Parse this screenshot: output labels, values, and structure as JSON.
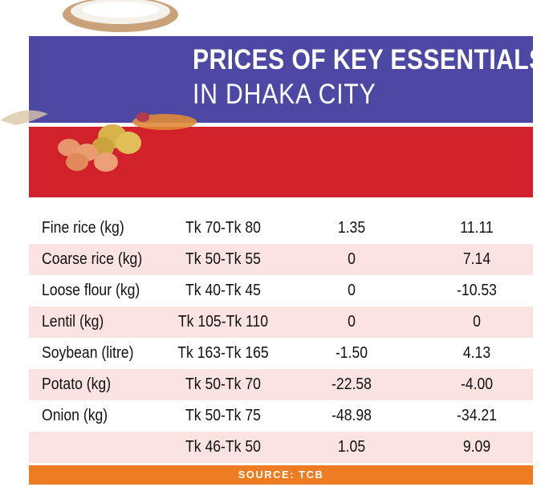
{
  "header": {
    "title_line1": "PRICES OF KEY ESSENTIALS",
    "title_line2": "IN DHAKA CITY"
  },
  "chart_data": {
    "type": "table",
    "title": "PRICES OF KEY ESSENTIALS IN DHAKA CITY",
    "rows": [
      {
        "item": "Fine rice (kg)",
        "price": "Tk 70-Tk 80",
        "v1": "1.35",
        "v2": "11.11"
      },
      {
        "item": "Coarse rice (kg)",
        "price": "Tk 50-Tk 55",
        "v1": "0",
        "v2": "7.14"
      },
      {
        "item": "Loose flour (kg)",
        "price": "Tk 40-Tk 45",
        "v1": "0",
        "v2": "-10.53"
      },
      {
        "item": "Lentil (kg)",
        "price": "Tk 105-Tk 110",
        "v1": "0",
        "v2": "0"
      },
      {
        "item": "Soybean (litre)",
        "price": "Tk 163-Tk 165",
        "v1": "-1.50",
        "v2": "4.13"
      },
      {
        "item": "Potato (kg)",
        "price": "Tk 50-Tk 70",
        "v1": "-22.58",
        "v2": "-4.00"
      },
      {
        "item": "Onion (kg)",
        "price": "Tk 50-Tk 75",
        "v1": "-48.98",
        "v2": "-34.21"
      },
      {
        "item": "",
        "price": "Tk 46-Tk 50",
        "v1": "1.05",
        "v2": "9.09"
      }
    ],
    "source": "SOURCE: TCB"
  },
  "colors": {
    "header_blue": "#4c48a3",
    "header_red": "#d1222b",
    "row_shade": "#fbe3e1",
    "source_bar": "#ee7c22"
  },
  "decorations": [
    "rice-plate-icon",
    "eggs-potatoes-icon"
  ]
}
